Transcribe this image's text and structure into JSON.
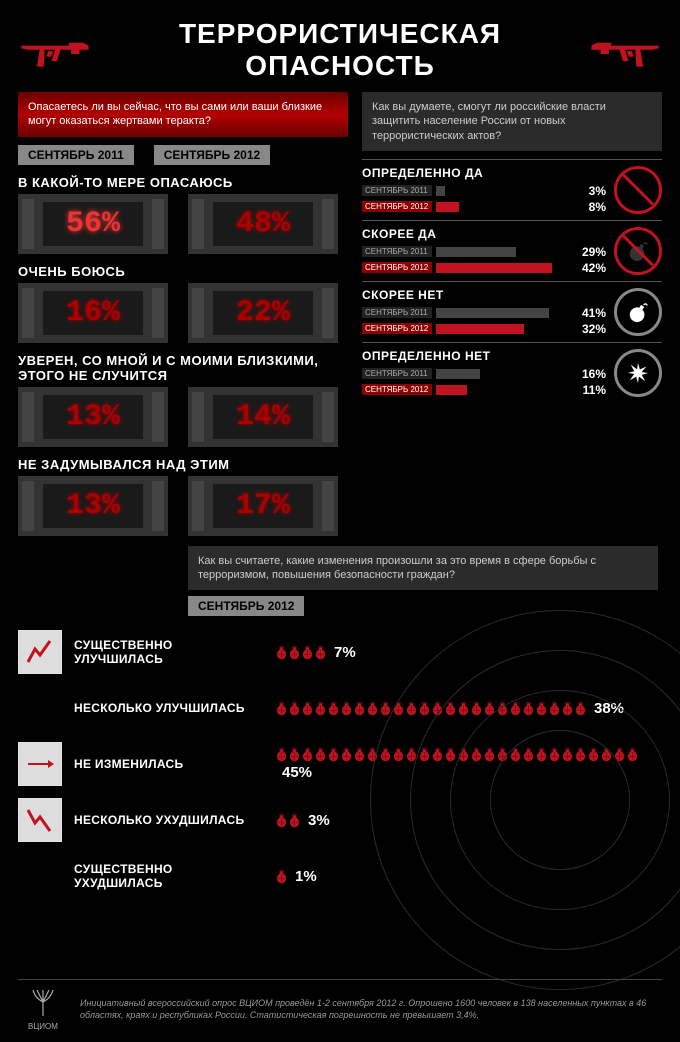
{
  "colors": {
    "bg": "#000000",
    "red": "#c1121f",
    "red_dark": "#8b0000",
    "gray_box": "#2b2b2b",
    "gray_bar": "#444444",
    "tab_bg": "#888888",
    "lcd_red_dim": "#a00000",
    "lcd_red_bright": "#e33333",
    "text": "#ffffff"
  },
  "title": "ТЕРРОРИСТИЧЕСКАЯ ОПАСНОСТЬ",
  "q1": {
    "text": "Опасаетесь ли вы сейчас, что вы сами или ваши близкие могут оказаться жертвами теракта?",
    "years": [
      "СЕНТЯБРЬ 2011",
      "СЕНТЯБРЬ 2012"
    ],
    "items": [
      {
        "label": "В КАКОЙ-ТО МЕРЕ ОПАСАЮСЬ",
        "v2011": "56%",
        "v2012": "48%",
        "glow2011": true
      },
      {
        "label": "ОЧЕНЬ БОЮСЬ",
        "v2011": "16%",
        "v2012": "22%"
      },
      {
        "label": "УВЕРЕН, СО МНОЙ И С МОИМИ БЛИЗКИМИ, ЭТОГО НЕ СЛУЧИТСЯ",
        "v2011": "13%",
        "v2012": "14%"
      },
      {
        "label": "НЕ ЗАДУМЫВАЛСЯ НАД ЭТИМ",
        "v2011": "13%",
        "v2012": "17%"
      }
    ]
  },
  "q2": {
    "text": "Как вы думаете, смогут ли российские власти защитить население России от новых террористических актов?",
    "year_2011": "СЕНТЯБРЬ 2011",
    "year_2012": "СЕНТЯБРЬ 2012",
    "items": [
      {
        "label": "ОПРЕДЕЛЕННО ДА",
        "p2011": 3,
        "p2012": 8,
        "strike": true,
        "bomb_fill": "#000"
      },
      {
        "label": "СКОРЕЕ ДА",
        "p2011": 29,
        "p2012": 42,
        "strike": true,
        "bomb_fill": "#333"
      },
      {
        "label": "СКОРЕЕ НЕТ",
        "p2011": 41,
        "p2012": 32,
        "strike": false,
        "bomb_fill": "#fff"
      },
      {
        "label": "ОПРЕДЕЛЕННО НЕТ",
        "p2011": 16,
        "p2012": 11,
        "strike": false,
        "bomb_fill": "#fff",
        "explosion": true
      }
    ],
    "bar_max": 50
  },
  "q3": {
    "text": "Как вы считаете, какие изменения произошли за это время в сфере борьбы с терроризмом, повышения безопасности граждан?",
    "year": "СЕНТЯБРЬ 2012",
    "items": [
      {
        "label": "СУЩЕСТВЕННО УЛУЧШИЛАСЬ",
        "pct": 7,
        "icon": "up-sharp",
        "icon_slot": true
      },
      {
        "label": "НЕСКОЛЬКО УЛУЧШИЛАСЬ",
        "pct": 38,
        "icon": null,
        "icon_slot": false
      },
      {
        "label": "НЕ ИЗМЕНИЛАСЬ",
        "pct": 45,
        "icon": "flat",
        "icon_slot": true
      },
      {
        "label": "НЕСКОЛЬКО УХУДШИЛАСЬ",
        "pct": 3,
        "icon": "down-sharp",
        "icon_slot": true
      },
      {
        "label": "СУЩЕСТВЕННО УХУДШИЛАСЬ",
        "pct": 1,
        "icon": null,
        "icon_slot": false
      }
    ],
    "grenade_fill": "#c1121f",
    "grenade_stroke": "#5a0a12"
  },
  "footer": {
    "logo_text": "ВЦИОМ",
    "text": "Инициативный всероссийский опрос ВЦИОМ проведён 1-2 сентября 2012 г. Опрошено 1600 человек в 138 населенных пунктах в 46 областях, краях и республиках России. Статистическая погрешность не превышает 3,4%."
  }
}
